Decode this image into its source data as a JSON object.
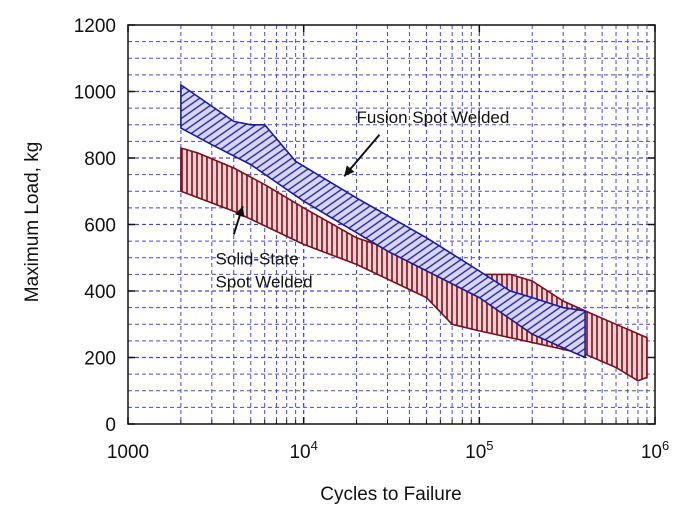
{
  "chart_data": {
    "type": "area",
    "title": "",
    "xlabel": "Cycles to Failure",
    "ylabel": "Maximum Load, kg",
    "x_scale": "log",
    "xlim": [
      1000,
      1000000
    ],
    "ylim": [
      0,
      1200
    ],
    "grid": true,
    "x_ticks": [
      {
        "value": 1000,
        "base": "1000",
        "exp": ""
      },
      {
        "value": 10000,
        "base": "10",
        "exp": "4"
      },
      {
        "value": 100000,
        "base": "10",
        "exp": "5"
      },
      {
        "value": 1000000,
        "base": "10",
        "exp": "6"
      }
    ],
    "y_ticks": [
      0,
      200,
      400,
      600,
      800,
      1000,
      1200
    ],
    "series": [
      {
        "name": "Solid-State Spot Welded",
        "color": "#7a1020",
        "fill": "#f2d0d0",
        "hatch": "vertical",
        "upper": {
          "x": [
            2000,
            2500,
            4000,
            6000,
            10000,
            20000,
            50000,
            100000,
            150000,
            200000,
            300000,
            400000,
            600000,
            900000
          ],
          "y": [
            830,
            815,
            770,
            720,
            650,
            560,
            490,
            450,
            450,
            430,
            370,
            340,
            300,
            260
          ]
        },
        "lower": {
          "x": [
            2000,
            4000,
            10000,
            20000,
            50000,
            70000,
            100000,
            200000,
            400000,
            600000,
            800000,
            900000
          ],
          "y": [
            700,
            640,
            540,
            480,
            380,
            300,
            280,
            245,
            210,
            170,
            130,
            140
          ]
        }
      },
      {
        "name": "Fusion Spot Welded",
        "color": "#1c1c9a",
        "fill": "#d6d6f0",
        "hatch": "diagonal",
        "upper": {
          "x": [
            2000,
            4000,
            5000,
            6000,
            9000,
            20000,
            50000,
            100000,
            150000,
            200000,
            300000,
            400000
          ],
          "y": [
            1020,
            910,
            900,
            900,
            790,
            680,
            560,
            460,
            400,
            380,
            350,
            340
          ]
        },
        "lower": {
          "x": [
            2000,
            3000,
            5000,
            10000,
            30000,
            100000,
            200000,
            400000
          ],
          "y": [
            890,
            840,
            780,
            670,
            520,
            380,
            270,
            200
          ]
        }
      }
    ],
    "annotations": [
      {
        "text": "Fusion Spot Welded",
        "lines": [
          "Fusion Spot Welded"
        ],
        "text_x": 20000,
        "text_y": 905,
        "arrow_from": [
          27000,
          870
        ],
        "arrow_to": [
          17000,
          745
        ]
      },
      {
        "text": "Solid-State Spot Welded",
        "lines": [
          "Solid-State",
          "Spot Welded"
        ],
        "text_x": 3150,
        "text_y": 480,
        "arrow_from": [
          4000,
          570
        ],
        "arrow_to": [
          4500,
          655
        ]
      }
    ]
  }
}
